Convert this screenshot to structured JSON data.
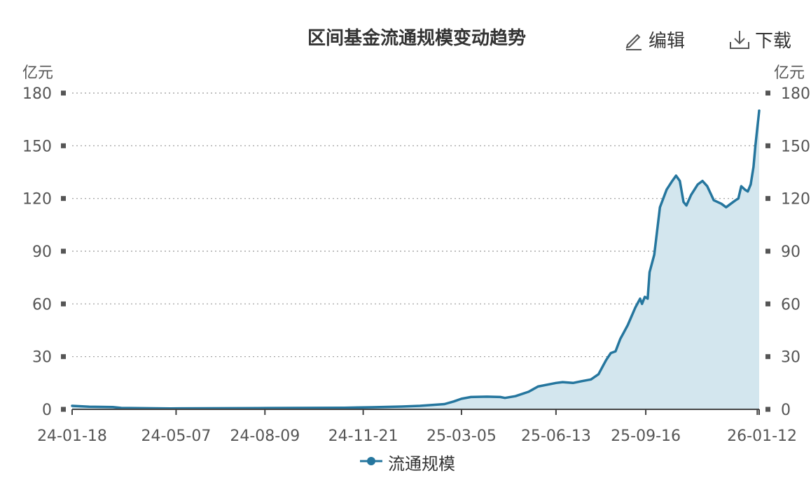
{
  "toolbar": {
    "edit_label": "编辑",
    "download_label": "下载"
  },
  "chart_data": {
    "type": "area",
    "title": "区间基金流通规模变动趋势",
    "y_unit_left": "亿元",
    "y_unit_right": "亿元",
    "ylim": [
      0,
      180
    ],
    "yticks": [
      0,
      30,
      60,
      90,
      120,
      150,
      180
    ],
    "xlim": [
      "2024-01-18",
      "2026-01-14"
    ],
    "xtick_labels": [
      "24-01-18",
      "24-05-07",
      "24-08-09",
      "24-11-21",
      "25-03-05",
      "25-06-13",
      "25-09-16",
      "26-01-12"
    ],
    "xtick_dates": [
      "2024-01-18",
      "2024-05-07",
      "2024-08-09",
      "2024-11-21",
      "2025-03-05",
      "2025-06-13",
      "2025-09-16",
      "2026-01-12"
    ],
    "grid": true,
    "legend_position": "bottom-center",
    "line_color": "#25769e",
    "fill_color": "#d3e6ee",
    "series": [
      {
        "name": "流通规模",
        "points": [
          [
            "2024-01-18",
            2.0
          ],
          [
            "2024-02-05",
            1.5
          ],
          [
            "2024-03-01",
            1.3
          ],
          [
            "2024-03-10",
            0.8
          ],
          [
            "2024-05-01",
            0.5
          ],
          [
            "2024-08-01",
            0.7
          ],
          [
            "2024-11-01",
            0.9
          ],
          [
            "2024-12-01",
            1.2
          ],
          [
            "2025-01-01",
            1.6
          ],
          [
            "2025-01-20",
            2.0
          ],
          [
            "2025-02-15",
            3.0
          ],
          [
            "2025-02-25",
            4.5
          ],
          [
            "2025-03-05",
            6.0
          ],
          [
            "2025-03-15",
            7.0
          ],
          [
            "2025-04-01",
            7.2
          ],
          [
            "2025-04-15",
            7.0
          ],
          [
            "2025-04-20",
            6.5
          ],
          [
            "2025-05-01",
            7.5
          ],
          [
            "2025-05-15",
            10.0
          ],
          [
            "2025-05-25",
            13.0
          ],
          [
            "2025-06-13",
            15.0
          ],
          [
            "2025-06-20",
            15.5
          ],
          [
            "2025-07-01",
            15.0
          ],
          [
            "2025-07-10",
            16.0
          ],
          [
            "2025-07-20",
            17.0
          ],
          [
            "2025-07-28",
            20.0
          ],
          [
            "2025-08-05",
            28.0
          ],
          [
            "2025-08-10",
            32.0
          ],
          [
            "2025-08-15",
            33.0
          ],
          [
            "2025-08-20",
            40.0
          ],
          [
            "2025-08-28",
            48.0
          ],
          [
            "2025-09-05",
            58.0
          ],
          [
            "2025-09-10",
            63.0
          ],
          [
            "2025-09-12",
            60.0
          ],
          [
            "2025-09-15",
            64.0
          ],
          [
            "2025-09-18",
            63.0
          ],
          [
            "2025-09-20",
            78.0
          ],
          [
            "2025-09-25",
            88.0
          ],
          [
            "2025-10-01",
            115.0
          ],
          [
            "2025-10-08",
            125.0
          ],
          [
            "2025-10-14",
            130.0
          ],
          [
            "2025-10-18",
            133.0
          ],
          [
            "2025-10-22",
            130.0
          ],
          [
            "2025-10-26",
            118.0
          ],
          [
            "2025-10-29",
            116.0
          ],
          [
            "2025-11-03",
            122.0
          ],
          [
            "2025-11-10",
            128.0
          ],
          [
            "2025-11-15",
            130.0
          ],
          [
            "2025-11-20",
            127.0
          ],
          [
            "2025-11-27",
            119.0
          ],
          [
            "2025-12-05",
            117.0
          ],
          [
            "2025-12-10",
            115.0
          ],
          [
            "2025-12-15",
            117.0
          ],
          [
            "2025-12-20",
            119.0
          ],
          [
            "2025-12-23",
            120.0
          ],
          [
            "2025-12-26",
            127.0
          ],
          [
            "2025-12-30",
            125.0
          ],
          [
            "2026-01-02",
            124.0
          ],
          [
            "2026-01-05",
            128.0
          ],
          [
            "2026-01-08",
            138.0
          ],
          [
            "2026-01-10",
            150.0
          ],
          [
            "2026-01-12",
            160.0
          ],
          [
            "2026-01-13",
            165.0
          ],
          [
            "2026-01-14",
            170.0
          ]
        ]
      }
    ]
  }
}
